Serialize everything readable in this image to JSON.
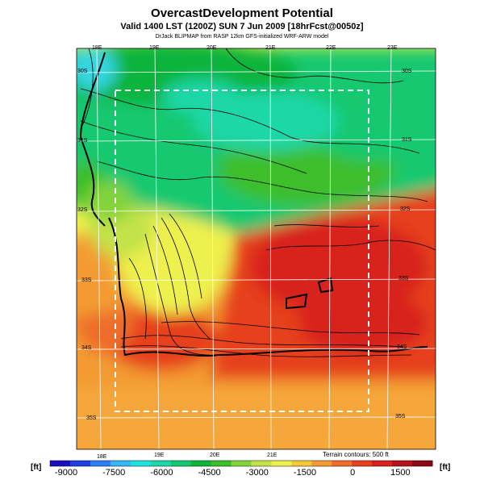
{
  "header": {
    "title": "OvercastDevelopment Potential",
    "valid": "Valid 1400 LST (1200Z) SUN 7 Jun 2009 [18hrFcst@0050z]",
    "credit": "DrJack BLIPMAP from RASP 12km GFS-initialized WRF-ARW model"
  },
  "map": {
    "lon_labels_top": [
      "18E",
      "19E",
      "20E",
      "21E",
      "22E",
      "23E"
    ],
    "lon_labels_bottom": [
      "18E",
      "19E",
      "20E",
      "21E"
    ],
    "lat_labels_left": [
      "30S",
      "31S",
      "32S",
      "33S",
      "34S",
      "35S"
    ],
    "lat_labels_right": [
      "30S",
      "31S",
      "32S",
      "33S",
      "34S",
      "35S"
    ],
    "terrain_note": "Terrain contours: 500 ft"
  },
  "colorbar": {
    "unit_left": "[ft]",
    "unit_right": "[ft]",
    "ticks": [
      "-9000",
      "-7500",
      "-6000",
      "-4500",
      "-3000",
      "-1500",
      "0",
      "1500"
    ],
    "colors": [
      "#1a0fbf",
      "#1f3fe0",
      "#2d7ef5",
      "#35b7f3",
      "#1fe0e0",
      "#1fd7a6",
      "#15c870",
      "#10b43a",
      "#3cbe2a",
      "#83d33a",
      "#c3e24a",
      "#eef04e",
      "#f5c83a",
      "#f39b32",
      "#ee6d2b",
      "#e6401f",
      "#d8201c",
      "#b5121a",
      "#8c0a14"
    ]
  }
}
